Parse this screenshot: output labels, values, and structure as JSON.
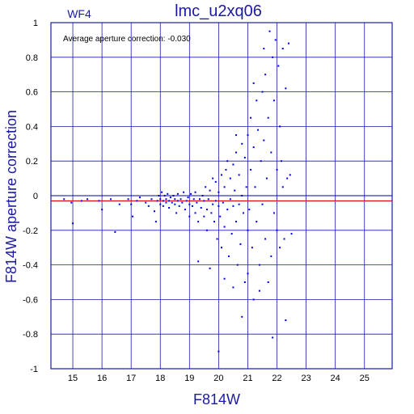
{
  "chart_data": {
    "type": "scatter",
    "title": "lmc_u2xq06",
    "chip_label": "WF4",
    "annotation": "Average aperture correction:  -0.030",
    "xlabel": "F814W",
    "ylabel": "F814W aperture correction",
    "xlim": [
      14.25,
      25.95
    ],
    "ylim": [
      -1,
      1
    ],
    "xticks": [
      15,
      16,
      17,
      18,
      19,
      20,
      21,
      22,
      23,
      24,
      25
    ],
    "yticks": [
      -1,
      -0.8,
      -0.6,
      -0.4,
      -0.2,
      0,
      0.2,
      0.4,
      0.6,
      0.8,
      1
    ],
    "ytick_labels": [
      "-1",
      "-0.8",
      "-0.6",
      "-0.4",
      "-0.2",
      "0",
      "0.2",
      "0.4",
      "0.6",
      "0.8",
      "1"
    ],
    "grid": true,
    "average_correction": -0.03,
    "colors": {
      "points": "#0000e6",
      "average_line": "#dd0000",
      "axes": "#1a1aa6",
      "zero_line": "#0000aa"
    },
    "points": [
      [
        14.7,
        -0.02
      ],
      [
        14.95,
        -0.04
      ],
      [
        15.0,
        -0.16
      ],
      [
        15.3,
        -0.03
      ],
      [
        15.5,
        -0.02
      ],
      [
        15.9,
        -0.03
      ],
      [
        16.0,
        -0.08
      ],
      [
        16.3,
        -0.02
      ],
      [
        16.45,
        -0.21
      ],
      [
        16.6,
        -0.05
      ],
      [
        16.9,
        -0.02
      ],
      [
        17.0,
        -0.05
      ],
      [
        17.05,
        -0.12
      ],
      [
        17.2,
        -0.03
      ],
      [
        17.3,
        -0.01
      ],
      [
        17.5,
        -0.04
      ],
      [
        17.6,
        -0.06
      ],
      [
        17.7,
        -0.02
      ],
      [
        17.8,
        -0.09
      ],
      [
        17.85,
        -0.15
      ],
      [
        17.9,
        -0.03
      ],
      [
        17.95,
        0.0
      ],
      [
        18.0,
        -0.02
      ],
      [
        18.0,
        -0.05
      ],
      [
        18.05,
        0.02
      ],
      [
        18.1,
        -0.03
      ],
      [
        18.1,
        -0.06
      ],
      [
        18.15,
        0.0
      ],
      [
        18.2,
        -0.02
      ],
      [
        18.2,
        -0.04
      ],
      [
        18.25,
        0.01
      ],
      [
        18.3,
        -0.03
      ],
      [
        18.3,
        -0.07
      ],
      [
        18.35,
        -0.01
      ],
      [
        18.4,
        -0.04
      ],
      [
        18.45,
        0.0
      ],
      [
        18.5,
        -0.05
      ],
      [
        18.5,
        -0.02
      ],
      [
        18.55,
        -0.1
      ],
      [
        18.6,
        -0.03
      ],
      [
        18.6,
        0.01
      ],
      [
        18.65,
        -0.06
      ],
      [
        18.7,
        -0.02
      ],
      [
        18.75,
        -0.04
      ],
      [
        18.8,
        0.02
      ],
      [
        18.85,
        -0.08
      ],
      [
        18.9,
        -0.03
      ],
      [
        18.95,
        -0.01
      ],
      [
        19.0,
        -0.05
      ],
      [
        19.0,
        -0.12
      ],
      [
        19.05,
        0.01
      ],
      [
        19.1,
        -0.06
      ],
      [
        19.15,
        -0.02
      ],
      [
        19.2,
        -0.1
      ],
      [
        19.2,
        0.02
      ],
      [
        19.25,
        -0.04
      ],
      [
        19.3,
        -0.15
      ],
      [
        19.3,
        -0.38
      ],
      [
        19.35,
        -0.02
      ],
      [
        19.4,
        -0.07
      ],
      [
        19.45,
        0.0
      ],
      [
        19.5,
        -0.12
      ],
      [
        19.5,
        -0.03
      ],
      [
        19.55,
        0.05
      ],
      [
        19.6,
        -0.08
      ],
      [
        19.6,
        -0.2
      ],
      [
        19.65,
        -0.02
      ],
      [
        19.7,
        0.03
      ],
      [
        19.75,
        -0.1
      ],
      [
        19.8,
        -0.05
      ],
      [
        19.8,
        0.1
      ],
      [
        19.85,
        -0.15
      ],
      [
        19.9,
        -0.03
      ],
      [
        19.9,
        0.08
      ],
      [
        19.95,
        -0.25
      ],
      [
        20.0,
        -0.06
      ],
      [
        20.0,
        0.02
      ],
      [
        20.05,
        -0.12
      ],
      [
        20.1,
        0.12
      ],
      [
        20.1,
        -0.3
      ],
      [
        20.15,
        -0.04
      ],
      [
        20.2,
        0.05
      ],
      [
        20.2,
        -0.18
      ],
      [
        20.25,
        0.15
      ],
      [
        20.3,
        -0.08
      ],
      [
        20.3,
        0.2
      ],
      [
        20.35,
        -0.35
      ],
      [
        20.4,
        -0.02
      ],
      [
        20.4,
        0.1
      ],
      [
        20.45,
        -0.22
      ],
      [
        20.5,
        0.18
      ],
      [
        20.5,
        -0.06
      ],
      [
        20.55,
        0.03
      ],
      [
        20.6,
        -0.15
      ],
      [
        20.6,
        0.25
      ],
      [
        20.65,
        -0.4
      ],
      [
        20.7,
        -0.05
      ],
      [
        20.7,
        0.12
      ],
      [
        20.75,
        -0.28
      ],
      [
        20.8,
        0.3
      ],
      [
        20.8,
        0.0
      ],
      [
        20.85,
        -0.1
      ],
      [
        20.9,
        0.22
      ],
      [
        20.9,
        -0.5
      ],
      [
        20.95,
        0.05
      ],
      [
        21.0,
        -0.2
      ],
      [
        21.0,
        0.35
      ],
      [
        21.05,
        -0.08
      ],
      [
        21.1,
        0.45
      ],
      [
        21.1,
        0.15
      ],
      [
        21.15,
        -0.3
      ],
      [
        21.2,
        0.28
      ],
      [
        21.2,
        -0.6
      ],
      [
        21.25,
        0.05
      ],
      [
        21.3,
        0.55
      ],
      [
        21.3,
        -0.15
      ],
      [
        21.35,
        0.38
      ],
      [
        21.4,
        -0.4
      ],
      [
        21.45,
        0.2
      ],
      [
        21.5,
        0.6
      ],
      [
        21.5,
        -0.05
      ],
      [
        21.55,
        0.32
      ],
      [
        21.6,
        -0.25
      ],
      [
        21.6,
        0.7
      ],
      [
        21.65,
        0.1
      ],
      [
        21.7,
        -0.5
      ],
      [
        21.7,
        0.45
      ],
      [
        21.75,
        0.95
      ],
      [
        21.8,
        0.25
      ],
      [
        21.8,
        -0.35
      ],
      [
        21.85,
        0.8
      ],
      [
        21.9,
        -0.1
      ],
      [
        21.9,
        0.55
      ],
      [
        21.95,
        0.9
      ],
      [
        22.0,
        0.15
      ],
      [
        22.0,
        -0.2
      ],
      [
        22.05,
        0.75
      ],
      [
        22.1,
        0.4
      ],
      [
        22.1,
        -0.3
      ],
      [
        22.15,
        0.2
      ],
      [
        22.2,
        0.85
      ],
      [
        22.2,
        0.05
      ],
      [
        22.25,
        -0.25
      ],
      [
        22.3,
        0.62
      ],
      [
        22.3,
        -0.72
      ],
      [
        22.35,
        0.1
      ],
      [
        22.4,
        0.88
      ],
      [
        22.45,
        0.12
      ],
      [
        22.5,
        -0.22
      ],
      [
        20.0,
        -0.9
      ],
      [
        21.85,
        -0.82
      ],
      [
        20.8,
        -0.7
      ],
      [
        20.5,
        -0.53
      ],
      [
        20.2,
        -0.48
      ],
      [
        21.0,
        -0.45
      ],
      [
        19.7,
        -0.42
      ],
      [
        21.4,
        -0.55
      ],
      [
        20.6,
        0.35
      ],
      [
        21.2,
        0.65
      ],
      [
        21.55,
        0.85
      ]
    ]
  }
}
